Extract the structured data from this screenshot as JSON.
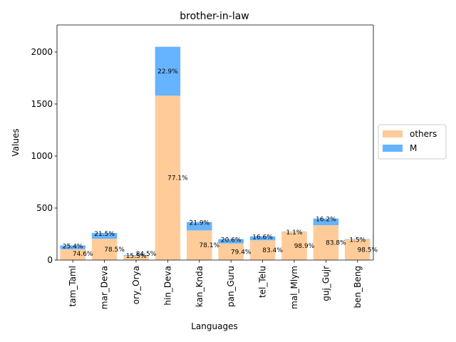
{
  "chart_data": {
    "type": "bar",
    "stacked": true,
    "title": "brother-in-law",
    "xlabel": "Languages",
    "ylabel": "Values",
    "ylim": [
      0,
      2260
    ],
    "yticks": [
      0,
      500,
      1000,
      1500,
      2000
    ],
    "categories": [
      "tam_Taml",
      "mar_Deva",
      "ory_Orya",
      "hin_Deva",
      "kan_Knda",
      "pan_Guru",
      "tel_Telu",
      "mal_Mlym",
      "guj_Gujr",
      "ben_Beng"
    ],
    "series": [
      {
        "name": "others",
        "color": "#ffcc99",
        "values": [
          105,
          205,
          40,
          1580,
          285,
          160,
          190,
          272,
          335,
          200
        ],
        "labels": [
          "74.6%",
          "78.5%",
          "84.5%",
          "77.1%",
          "78.1%",
          "79.4%",
          "83.4%",
          "98.9%",
          "83.8%",
          "98.5%"
        ]
      },
      {
        "name": "M",
        "color": "#66b3ff",
        "values": [
          36,
          56,
          7,
          470,
          80,
          42,
          38,
          3,
          65,
          3
        ],
        "labels": [
          "25.4%",
          "21.5%",
          "15.5%",
          "22.9%",
          "21.9%",
          "20.6%",
          "16.6%",
          "1.1%",
          "16.2%",
          "1.5%"
        ]
      }
    ],
    "legend_position": "center-right",
    "grid": false
  }
}
